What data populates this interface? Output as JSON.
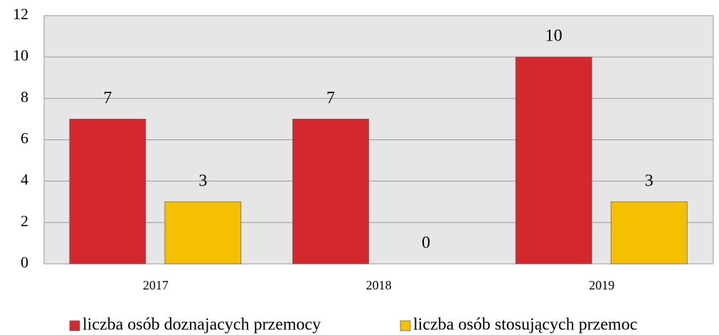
{
  "chart_data": {
    "type": "bar",
    "categories": [
      "2017",
      "2018",
      "2019"
    ],
    "series": [
      {
        "name": "liczba osób doznajacych przemocy",
        "color": "#d2282e",
        "values": [
          7,
          7,
          10
        ]
      },
      {
        "name": "liczba osób stosujących przemoc",
        "color": "#f5c000",
        "values": [
          3,
          0,
          3
        ]
      }
    ],
    "ylim": [
      0,
      12
    ],
    "yticks": [
      0,
      2,
      4,
      6,
      8,
      10,
      12
    ],
    "grid": true,
    "legend": "bottom"
  }
}
